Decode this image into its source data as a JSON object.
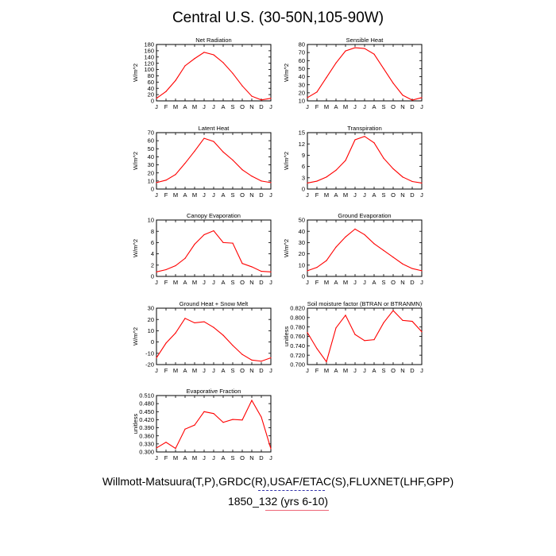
{
  "title": "Central U.S. (30-50N,105-90W)",
  "footer": {
    "sources": "Willmott-Matsuura(T,P),GRDC(R),USAF/ETAC(S),FLUXNET(LHF,GPP)",
    "case": "1850_132 (yrs 6-10)"
  },
  "colors": {
    "line": "#ff0000",
    "axis": "#000000",
    "underline_blue": "#3333aa",
    "underline_red": "#ee6677"
  },
  "chart_data": [
    {
      "type": "line",
      "title": "Net Radiation",
      "ylabel": "W/m^2",
      "categories": [
        "J",
        "F",
        "M",
        "A",
        "M",
        "J",
        "J",
        "A",
        "S",
        "O",
        "N",
        "D",
        "J"
      ],
      "yticks": [
        0,
        20,
        40,
        60,
        80,
        100,
        120,
        140,
        160,
        180
      ],
      "ylim": [
        0,
        180
      ],
      "values": [
        8,
        30,
        65,
        112,
        135,
        155,
        147,
        122,
        88,
        48,
        15,
        3,
        8
      ]
    },
    {
      "type": "line",
      "title": "Sensible Heat",
      "ylabel": "W/m^2",
      "categories": [
        "J",
        "F",
        "M",
        "A",
        "M",
        "J",
        "J",
        "A",
        "S",
        "O",
        "N",
        "D",
        "J"
      ],
      "yticks": [
        10,
        20,
        30,
        40,
        50,
        60,
        70,
        80
      ],
      "ylim": [
        10,
        80
      ],
      "values": [
        14,
        21,
        39,
        57,
        72,
        76,
        75,
        68,
        50,
        32,
        17,
        11,
        14
      ]
    },
    {
      "type": "line",
      "title": "Latent Heat",
      "ylabel": "W/m^2",
      "categories": [
        "J",
        "F",
        "M",
        "A",
        "M",
        "J",
        "J",
        "A",
        "S",
        "O",
        "N",
        "D",
        "J"
      ],
      "yticks": [
        0,
        10,
        20,
        30,
        40,
        50,
        60,
        70
      ],
      "ylim": [
        0,
        70
      ],
      "values": [
        8,
        11,
        18,
        32,
        47,
        63,
        59,
        46,
        36,
        24,
        16,
        10,
        8
      ]
    },
    {
      "type": "line",
      "title": "Transpiration",
      "ylabel": "W/m^2",
      "categories": [
        "J",
        "F",
        "M",
        "A",
        "M",
        "J",
        "J",
        "A",
        "S",
        "O",
        "N",
        "D",
        "J"
      ],
      "yticks": [
        0,
        3,
        6,
        9,
        12,
        15
      ],
      "ylim": [
        0,
        15
      ],
      "values": [
        1.6,
        2.1,
        3.2,
        5.0,
        7.6,
        13.1,
        14.0,
        12.3,
        8.2,
        5.4,
        3.2,
        2.0,
        1.6
      ]
    },
    {
      "type": "line",
      "title": "Canopy Evaporation",
      "ylabel": "W/m^2",
      "categories": [
        "J",
        "F",
        "M",
        "A",
        "M",
        "J",
        "J",
        "A",
        "S",
        "O",
        "N",
        "D",
        "J"
      ],
      "yticks": [
        0,
        2,
        4,
        6,
        8,
        10
      ],
      "ylim": [
        0,
        10
      ],
      "values": [
        0.8,
        1.2,
        1.9,
        3.2,
        5.7,
        7.4,
        8.1,
        6.0,
        5.9,
        2.3,
        1.7,
        0.9,
        0.8
      ]
    },
    {
      "type": "line",
      "title": "Ground Evaporation",
      "ylabel": "W/m^2",
      "categories": [
        "J",
        "F",
        "M",
        "A",
        "M",
        "J",
        "J",
        "A",
        "S",
        "O",
        "N",
        "D",
        "J"
      ],
      "yticks": [
        0,
        10,
        20,
        30,
        40,
        50
      ],
      "ylim": [
        0,
        50
      ],
      "values": [
        5,
        8,
        14,
        26,
        35,
        42,
        37,
        29,
        23,
        17,
        11,
        7,
        5
      ]
    },
    {
      "type": "line",
      "title": "Ground Heat + Snow Melt",
      "ylabel": "W/m^2",
      "categories": [
        "J",
        "F",
        "M",
        "A",
        "M",
        "J",
        "J",
        "A",
        "S",
        "O",
        "N",
        "D",
        "J"
      ],
      "yticks": [
        -20,
        -10,
        0,
        10,
        20,
        30
      ],
      "ylim": [
        -20,
        30
      ],
      "values": [
        -14,
        -1,
        8,
        21,
        17,
        18,
        13,
        6,
        -3,
        -11,
        -16,
        -17,
        -14
      ]
    },
    {
      "type": "line",
      "title": "Soil moisture factor (BTRAN or BTRANMN)",
      "ylabel": "unitless",
      "categories": [
        "J",
        "F",
        "M",
        "A",
        "M",
        "J",
        "J",
        "A",
        "S",
        "O",
        "N",
        "D",
        "J"
      ],
      "yticks": [
        "0.700",
        "0.720",
        "0.740",
        "0.760",
        "0.780",
        "0.800",
        "0.820"
      ],
      "ylim": [
        0.7,
        0.82
      ],
      "values": [
        0.768,
        0.734,
        0.706,
        0.778,
        0.805,
        0.764,
        0.751,
        0.753,
        0.789,
        0.815,
        0.794,
        0.792,
        0.77
      ]
    },
    {
      "type": "line",
      "title": "Evaporative Fraction",
      "ylabel": "unitless",
      "categories": [
        "J",
        "F",
        "M",
        "A",
        "M",
        "J",
        "J",
        "A",
        "S",
        "O",
        "N",
        "D",
        "J"
      ],
      "yticks": [
        "0.300",
        "0.330",
        "0.360",
        "0.390",
        "0.420",
        "0.450",
        "0.480",
        "0.510"
      ],
      "ylim": [
        0.3,
        0.51
      ],
      "values": [
        0.315,
        0.336,
        0.313,
        0.385,
        0.4,
        0.45,
        0.443,
        0.41,
        0.421,
        0.419,
        0.492,
        0.43,
        0.312
      ]
    }
  ]
}
